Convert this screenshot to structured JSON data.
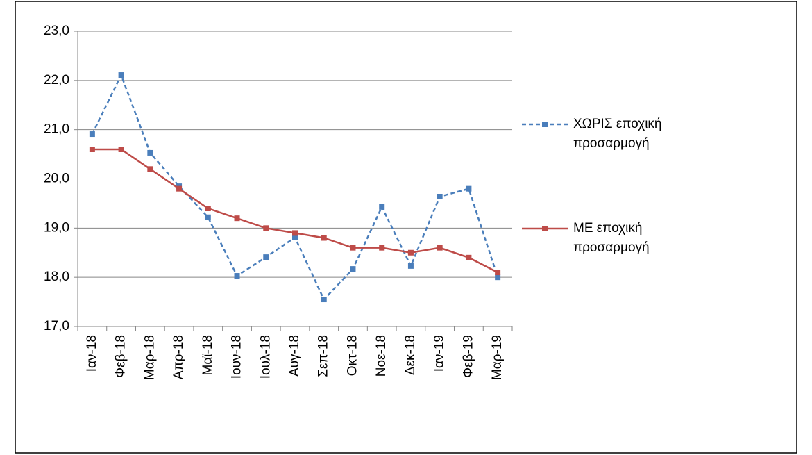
{
  "chart_data": {
    "type": "line",
    "categories": [
      "Ιαν-18",
      "Φεβ-18",
      "Μαρ-18",
      "Απρ-18",
      "Μαϊ-18",
      "Ιουν-18",
      "Ιουλ-18",
      "Αυγ-18",
      "Σεπ-18",
      "Οκτ-18",
      "Νοε-18",
      "Δεκ-18",
      "Ιαν-19",
      "Φεβ-19",
      "Μαρ-19"
    ],
    "series": [
      {
        "name": "ΧΩΡΙΣ εποχική προσαρμογή",
        "color": "#4a7ebb",
        "dashed": true,
        "values": [
          20.91,
          22.11,
          20.53,
          19.85,
          19.22,
          18.03,
          18.41,
          18.81,
          17.55,
          18.17,
          19.43,
          18.23,
          19.64,
          19.8,
          18.0
        ]
      },
      {
        "name": "ΜΕ εποχική προσαρμογή",
        "color": "#be4b48",
        "dashed": false,
        "values": [
          20.6,
          20.6,
          20.2,
          19.8,
          19.4,
          19.2,
          19.0,
          18.9,
          18.8,
          18.6,
          18.6,
          18.5,
          18.6,
          18.4,
          18.1
        ]
      }
    ],
    "ylim": [
      17,
      23
    ],
    "yticks": [
      {
        "value": 17,
        "label": "17,0"
      },
      {
        "value": 18,
        "label": "18,0"
      },
      {
        "value": 19,
        "label": "19,0"
      },
      {
        "value": 20,
        "label": "20,0"
      },
      {
        "value": 21,
        "label": "21,0"
      },
      {
        "value": 22,
        "label": "22,0"
      },
      {
        "value": 23,
        "label": "23,0"
      }
    ],
    "grid": true,
    "legend": "right"
  }
}
